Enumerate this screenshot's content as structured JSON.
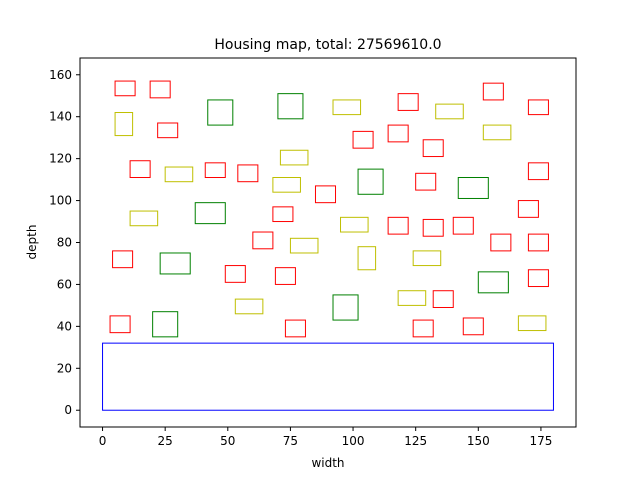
{
  "chart_data": {
    "type": "scatter",
    "title": "Housing map, total: 27569610.0",
    "xlabel": "width",
    "ylabel": "depth",
    "xlim": [
      -9,
      189
    ],
    "ylim": [
      -8,
      168
    ],
    "xticks": [
      0,
      25,
      50,
      75,
      100,
      125,
      150,
      175
    ],
    "yticks": [
      0,
      20,
      40,
      60,
      80,
      100,
      120,
      140,
      160
    ],
    "grid": false,
    "colors": {
      "red": "#ff0000",
      "yellow": "#bfbf00",
      "green": "#008000",
      "blue": "#0000ff"
    },
    "boundary": {
      "color": "blue",
      "x": 0,
      "y": 0,
      "w": 180,
      "h": 32
    },
    "houses": [
      {
        "color": "red",
        "x": 5,
        "y": 150,
        "w": 8,
        "h": 7
      },
      {
        "color": "red",
        "x": 19,
        "y": 149,
        "w": 8,
        "h": 8
      },
      {
        "color": "green",
        "x": 42,
        "y": 136,
        "w": 10,
        "h": 12
      },
      {
        "color": "green",
        "x": 70,
        "y": 139,
        "w": 10,
        "h": 12
      },
      {
        "color": "yellow",
        "x": 92,
        "y": 141,
        "w": 11,
        "h": 7
      },
      {
        "color": "red",
        "x": 118,
        "y": 143,
        "w": 8,
        "h": 8
      },
      {
        "color": "yellow",
        "x": 133,
        "y": 139,
        "w": 11,
        "h": 7
      },
      {
        "color": "red",
        "x": 152,
        "y": 148,
        "w": 8,
        "h": 8
      },
      {
        "color": "red",
        "x": 170,
        "y": 141,
        "w": 8,
        "h": 7
      },
      {
        "color": "yellow",
        "x": 5,
        "y": 131,
        "w": 7,
        "h": 11
      },
      {
        "color": "red",
        "x": 22,
        "y": 130,
        "w": 8,
        "h": 7
      },
      {
        "color": "red",
        "x": 100,
        "y": 125,
        "w": 8,
        "h": 8
      },
      {
        "color": "red",
        "x": 114,
        "y": 128,
        "w": 8,
        "h": 8
      },
      {
        "color": "yellow",
        "x": 152,
        "y": 129,
        "w": 11,
        "h": 7
      },
      {
        "color": "red",
        "x": 128,
        "y": 121,
        "w": 8,
        "h": 8
      },
      {
        "color": "red",
        "x": 11,
        "y": 111,
        "w": 8,
        "h": 8
      },
      {
        "color": "yellow",
        "x": 25,
        "y": 109,
        "w": 11,
        "h": 7
      },
      {
        "color": "red",
        "x": 41,
        "y": 111,
        "w": 8,
        "h": 7
      },
      {
        "color": "red",
        "x": 54,
        "y": 109,
        "w": 8,
        "h": 8
      },
      {
        "color": "yellow",
        "x": 71,
        "y": 117,
        "w": 11,
        "h": 7
      },
      {
        "color": "yellow",
        "x": 68,
        "y": 104,
        "w": 11,
        "h": 7
      },
      {
        "color": "green",
        "x": 102,
        "y": 103,
        "w": 10,
        "h": 12
      },
      {
        "color": "red",
        "x": 125,
        "y": 105,
        "w": 8,
        "h": 8
      },
      {
        "color": "green",
        "x": 142,
        "y": 101,
        "w": 12,
        "h": 10
      },
      {
        "color": "red",
        "x": 170,
        "y": 110,
        "w": 8,
        "h": 8
      },
      {
        "color": "red",
        "x": 85,
        "y": 99,
        "w": 8,
        "h": 8
      },
      {
        "color": "green",
        "x": 37,
        "y": 89,
        "w": 12,
        "h": 10
      },
      {
        "color": "red",
        "x": 68,
        "y": 90,
        "w": 8,
        "h": 7
      },
      {
        "color": "yellow",
        "x": 11,
        "y": 88,
        "w": 11,
        "h": 7
      },
      {
        "color": "red",
        "x": 166,
        "y": 92,
        "w": 8,
        "h": 8
      },
      {
        "color": "yellow",
        "x": 95,
        "y": 85,
        "w": 11,
        "h": 7
      },
      {
        "color": "red",
        "x": 114,
        "y": 84,
        "w": 8,
        "h": 8
      },
      {
        "color": "red",
        "x": 128,
        "y": 83,
        "w": 8,
        "h": 8
      },
      {
        "color": "red",
        "x": 140,
        "y": 84,
        "w": 8,
        "h": 8
      },
      {
        "color": "red",
        "x": 60,
        "y": 77,
        "w": 8,
        "h": 8
      },
      {
        "color": "yellow",
        "x": 75,
        "y": 75,
        "w": 11,
        "h": 7
      },
      {
        "color": "red",
        "x": 155,
        "y": 76,
        "w": 8,
        "h": 8
      },
      {
        "color": "red",
        "x": 170,
        "y": 76,
        "w": 8,
        "h": 8
      },
      {
        "color": "red",
        "x": 4,
        "y": 68,
        "w": 8,
        "h": 8
      },
      {
        "color": "green",
        "x": 23,
        "y": 65,
        "w": 12,
        "h": 10
      },
      {
        "color": "yellow",
        "x": 102,
        "y": 67,
        "w": 7,
        "h": 11
      },
      {
        "color": "yellow",
        "x": 124,
        "y": 69,
        "w": 11,
        "h": 7
      },
      {
        "color": "red",
        "x": 49,
        "y": 61,
        "w": 8,
        "h": 8
      },
      {
        "color": "red",
        "x": 69,
        "y": 60,
        "w": 8,
        "h": 8
      },
      {
        "color": "green",
        "x": 150,
        "y": 56,
        "w": 12,
        "h": 10
      },
      {
        "color": "red",
        "x": 170,
        "y": 59,
        "w": 8,
        "h": 8
      },
      {
        "color": "yellow",
        "x": 53,
        "y": 46,
        "w": 11,
        "h": 7
      },
      {
        "color": "green",
        "x": 92,
        "y": 43,
        "w": 10,
        "h": 12
      },
      {
        "color": "yellow",
        "x": 118,
        "y": 50,
        "w": 11,
        "h": 7
      },
      {
        "color": "red",
        "x": 132,
        "y": 49,
        "w": 8,
        "h": 8
      },
      {
        "color": "red",
        "x": 3,
        "y": 37,
        "w": 8,
        "h": 8
      },
      {
        "color": "green",
        "x": 20,
        "y": 35,
        "w": 10,
        "h": 12
      },
      {
        "color": "red",
        "x": 73,
        "y": 35,
        "w": 8,
        "h": 8
      },
      {
        "color": "red",
        "x": 124,
        "y": 35,
        "w": 8,
        "h": 8
      },
      {
        "color": "red",
        "x": 144,
        "y": 36,
        "w": 8,
        "h": 8
      },
      {
        "color": "yellow",
        "x": 166,
        "y": 38,
        "w": 11,
        "h": 7
      }
    ]
  }
}
